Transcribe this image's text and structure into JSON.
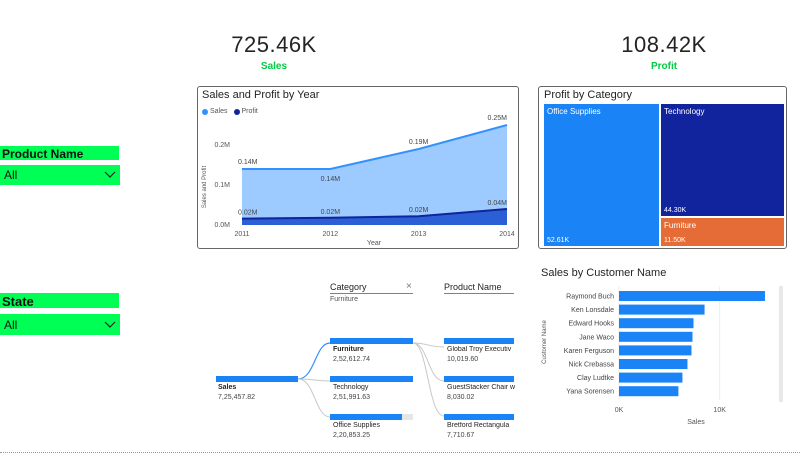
{
  "kpis": {
    "sales": {
      "value": "725.46K",
      "label": "Sales"
    },
    "profit": {
      "value": "108.42K",
      "label": "Profit"
    }
  },
  "slicers": {
    "product_name": {
      "title": "Product Name",
      "value": "All"
    },
    "state": {
      "title": "State",
      "value": "All"
    }
  },
  "colors": {
    "accent_green": "#00ff55",
    "sales": "#3391ff",
    "profit": "#12239e",
    "furniture": "#e66c37"
  },
  "area_chart": {
    "title": "Sales and Profit by Year",
    "legend": [
      "Sales",
      "Profit"
    ],
    "ylabel": "Sales and Profit",
    "xlabel": "Year",
    "yticks": [
      "0.2M",
      "0.1M",
      "0.0M"
    ],
    "xticks": [
      "2011",
      "2012",
      "2013",
      "2014"
    ],
    "sales_labels": [
      "0.14M",
      "0.14M",
      "0.19M",
      "0.25M"
    ],
    "profit_labels": [
      "0.02M",
      "0.02M",
      "0.02M",
      "0.04M"
    ]
  },
  "treemap": {
    "title": "Profit by Category",
    "cells": [
      {
        "name": "Office Supplies",
        "value": "52.61K"
      },
      {
        "name": "Technology",
        "value": "44.30K"
      },
      {
        "name": "Furniture",
        "value": "11.50K"
      }
    ]
  },
  "decomp": {
    "col_category": "Category",
    "col_category_filter": "Furniture",
    "col_product": "Product Name",
    "root": {
      "label": "Sales",
      "value": "7,25,457.82"
    },
    "categories": [
      {
        "label": "Furniture",
        "value": "2,52,612.74"
      },
      {
        "label": "Technology",
        "value": "2,51,991.63"
      },
      {
        "label": "Office Supplies",
        "value": "2,20,853.25"
      }
    ],
    "products": [
      {
        "label": "Global Troy Executiv",
        "value": "10,019.60"
      },
      {
        "label": "GuestStacker Chair w",
        "value": "8,030.02"
      },
      {
        "label": "Bretford Rectangula",
        "value": "7,710.67"
      }
    ],
    "close_symbol": "×"
  },
  "bar_chart": {
    "title": "Sales by Customer Name",
    "ylabel": "Customer Name",
    "xlabel": "Sales",
    "xticks": [
      "0K",
      "10K"
    ]
  },
  "chart_data": [
    {
      "type": "area",
      "title": "Sales and Profit by Year",
      "xlabel": "Year",
      "ylabel": "Sales and Profit",
      "x": [
        2011,
        2012,
        2013,
        2014
      ],
      "series": [
        {
          "name": "Sales",
          "values": [
            0.14,
            0.14,
            0.19,
            0.25
          ]
        },
        {
          "name": "Profit",
          "values": [
            0.016,
            0.018,
            0.022,
            0.04
          ]
        }
      ],
      "ylim": [
        0,
        0.25
      ]
    },
    {
      "type": "bar",
      "title": "Sales by Customer Name",
      "xlabel": "Sales",
      "ylabel": "Customer Name",
      "categories": [
        "Raymond Buch",
        "Ken Lonsdale",
        "Edward Hooks",
        "Jane Waco",
        "Karen Ferguson",
        "Nick Crebassa",
        "Clay Ludtke",
        "Yana Sorensen"
      ],
      "values": [
        14500,
        8500,
        7400,
        7300,
        7200,
        6800,
        6300,
        5900
      ],
      "xlim": [
        0,
        15000
      ]
    }
  ]
}
